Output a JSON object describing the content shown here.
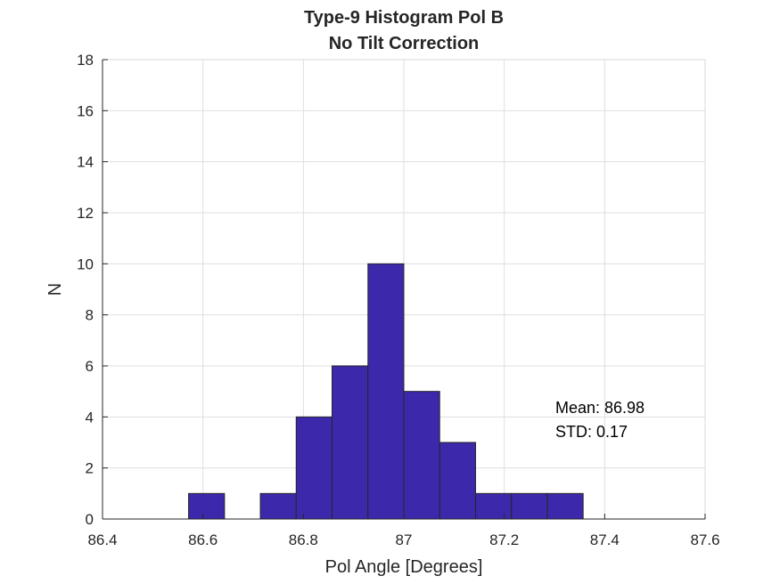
{
  "chart_data": {
    "type": "bar",
    "title": [
      "Type-9 Histogram Pol B",
      "No Tilt Correction"
    ],
    "xlabel": "Pol Angle [Degrees]",
    "ylabel": "N",
    "xlim": [
      86.4,
      87.6
    ],
    "ylim": [
      0,
      18
    ],
    "xticks": [
      "86.4",
      "86.6",
      "86.8",
      "87",
      "87.2",
      "87.4",
      "87.6"
    ],
    "yticks": [
      "0",
      "2",
      "4",
      "6",
      "8",
      "10",
      "12",
      "14",
      "16",
      "18"
    ],
    "grid": true,
    "bin_edges": [
      86.5,
      86.5714,
      86.6429,
      86.7143,
      86.7857,
      86.8571,
      86.9286,
      87.0,
      87.0714,
      87.1429,
      87.2143,
      87.2857,
      87.3571,
      87.4286,
      87.5,
      87.5714
    ],
    "counts": [
      0,
      1,
      0,
      1,
      4,
      6,
      10,
      5,
      3,
      1,
      1,
      1,
      0,
      0,
      0
    ],
    "bar_color": "#3c28aa",
    "annotations": [
      "Mean: 86.98",
      "STD: 0.17"
    ]
  }
}
